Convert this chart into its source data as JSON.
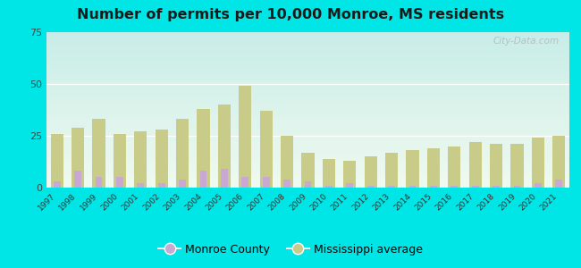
{
  "title": "Number of permits per 10,000 Monroe, MS residents",
  "years": [
    1997,
    1998,
    1999,
    2000,
    2001,
    2002,
    2003,
    2004,
    2005,
    2006,
    2007,
    2008,
    2009,
    2010,
    2011,
    2012,
    2013,
    2014,
    2015,
    2016,
    2017,
    2018,
    2019,
    2020,
    2021
  ],
  "monroe_county": [
    3,
    8,
    5,
    5,
    2,
    2,
    4,
    8,
    9,
    5,
    5,
    4,
    3,
    1,
    2,
    1,
    1,
    1,
    1,
    1,
    1,
    1,
    1,
    2,
    4
  ],
  "ms_average": [
    26,
    29,
    33,
    26,
    27,
    28,
    33,
    38,
    40,
    49,
    37,
    25,
    17,
    14,
    13,
    15,
    17,
    18,
    19,
    20,
    22,
    21,
    21,
    24,
    25
  ],
  "monroe_color": "#c9a9d4",
  "ms_color": "#c8cc88",
  "bg_top_color": "#f0faf0",
  "bg_bottom_color": "#c8ede8",
  "outer_background": "#00e5e5",
  "ylim": [
    0,
    75
  ],
  "yticks": [
    0,
    25,
    50,
    75
  ],
  "bar_width": 0.6,
  "title_fontsize": 11.5,
  "watermark": "City-Data.com",
  "legend_monroe": "Monroe County",
  "legend_ms": "Mississippi average"
}
